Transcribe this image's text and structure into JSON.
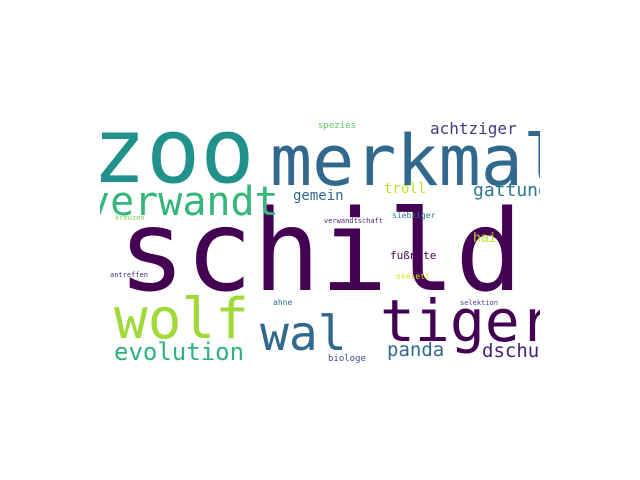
{
  "words": [
    {
      "text": "schild",
      "color": "#440154",
      "weight": 1.0
    },
    {
      "text": "zoo",
      "color": "#21918c",
      "weight": 0.78
    },
    {
      "text": "merkmal",
      "color": "#31688e",
      "weight": 0.62
    },
    {
      "text": "tiger",
      "color": "#440154",
      "weight": 0.5
    },
    {
      "text": "wolf",
      "color": "#a0da39",
      "weight": 0.48
    },
    {
      "text": "wal",
      "color": "#31688e",
      "weight": 0.42
    },
    {
      "text": "verwandt",
      "color": "#35b779",
      "weight": 0.38
    },
    {
      "text": "evolution",
      "color": "#2db27d",
      "weight": 0.24
    },
    {
      "text": "dschungel",
      "color": "#481f70",
      "weight": 0.18
    },
    {
      "text": "panda",
      "color": "#31688e",
      "weight": 0.18
    },
    {
      "text": "gattung",
      "color": "#2a788e",
      "weight": 0.17
    },
    {
      "text": "achtziger",
      "color": "#443983",
      "weight": 0.15
    },
    {
      "text": "gemein",
      "color": "#31688e",
      "weight": 0.13
    },
    {
      "text": "troll",
      "color": "#bddf26",
      "weight": 0.13
    },
    {
      "text": "hai",
      "color": "#bddf26",
      "weight": 0.12
    },
    {
      "text": "fußnote",
      "color": "#440154",
      "weight": 0.1
    },
    {
      "text": "spezies",
      "color": "#5ec962",
      "weight": 0.08
    },
    {
      "text": "biologe",
      "color": "#3b528b",
      "weight": 0.07
    },
    {
      "text": "ahne",
      "color": "#2c728e",
      "weight": 0.06
    },
    {
      "text": "skelett",
      "color": "#d8e219",
      "weight": 0.06
    },
    {
      "text": "siebziger",
      "color": "#2a788e",
      "weight": 0.05
    },
    {
      "text": "verwandtschaft",
      "color": "#482878",
      "weight": 0.05
    },
    {
      "text": "kreuzen",
      "color": "#7ad151",
      "weight": 0.05
    },
    {
      "text": "antreffen",
      "color": "#472d7b",
      "weight": 0.05
    },
    {
      "text": "selektion",
      "color": "#414487",
      "weight": 0.05
    }
  ]
}
